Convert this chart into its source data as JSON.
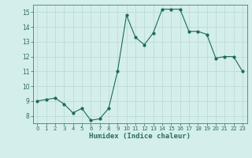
{
  "x": [
    0,
    1,
    2,
    3,
    4,
    5,
    6,
    7,
    8,
    9,
    10,
    11,
    12,
    13,
    14,
    15,
    16,
    17,
    18,
    19,
    20,
    21,
    22,
    23
  ],
  "y": [
    9.0,
    9.1,
    9.2,
    8.8,
    8.2,
    8.5,
    7.7,
    7.8,
    8.5,
    11.0,
    14.8,
    13.3,
    12.8,
    13.6,
    15.2,
    15.2,
    15.2,
    13.7,
    13.7,
    13.5,
    11.9,
    12.0,
    12.0,
    11.0
  ],
  "xlim": [
    -0.5,
    23.5
  ],
  "ylim": [
    7.5,
    15.5
  ],
  "yticks": [
    8,
    9,
    10,
    11,
    12,
    13,
    14,
    15
  ],
  "xticks": [
    0,
    1,
    2,
    3,
    4,
    5,
    6,
    7,
    8,
    9,
    10,
    11,
    12,
    13,
    14,
    15,
    16,
    17,
    18,
    19,
    20,
    21,
    22,
    23
  ],
  "xlabel": "Humidex (Indice chaleur)",
  "line_color": "#1a6b5a",
  "marker": "o",
  "marker_size": 2,
  "bg_color": "#d4eeeb",
  "grid_color": "#b8d8d4",
  "axis_color": "#2a6b60"
}
